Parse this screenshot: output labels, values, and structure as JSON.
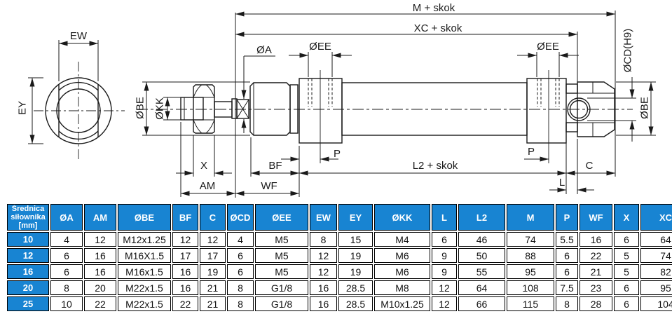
{
  "diagram": {
    "labels": {
      "m_skok": "M + skok",
      "xc_skok": "XC + skok",
      "l2_skok": "L2 + skok",
      "oa": "ØA",
      "oee_front": "ØEE",
      "oee_rear": "ØEE",
      "ocd": "ØCD(H9)",
      "obe_left": "ØBE",
      "obe_right": "ØBE",
      "okk": "ØKK",
      "ew": "EW",
      "ey": "EY",
      "x": "X",
      "am": "AM",
      "bf": "BF",
      "wf": "WF",
      "p_front": "P",
      "p_rear": "P",
      "l": "L",
      "c": "C"
    },
    "line_color": "#1a1a1a"
  },
  "table": {
    "header": {
      "col0": [
        "Średnica",
        "siłownika",
        "[mm]"
      ],
      "cols": [
        "ØA",
        "AM",
        "ØBE",
        "BF",
        "C",
        "ØCD",
        "ØEE",
        "EW",
        "EY",
        "ØKK",
        "L",
        "L2",
        "M",
        "P",
        "WF",
        "X",
        "XC"
      ]
    },
    "rows": [
      {
        "size": "10",
        "values": [
          "4",
          "12",
          "M12x1.25",
          "12",
          "12",
          "4",
          "M5",
          "8",
          "15",
          "M4",
          "6",
          "46",
          "74",
          "5.5",
          "16",
          "6",
          "64"
        ]
      },
      {
        "size": "12",
        "values": [
          "6",
          "16",
          "M16X1.5",
          "17",
          "17",
          "6",
          "M5",
          "12",
          "19",
          "M6",
          "9",
          "50",
          "88",
          "6",
          "22",
          "5",
          "74"
        ]
      },
      {
        "size": "16",
        "values": [
          "6",
          "16",
          "M16x1.5",
          "16",
          "19",
          "6",
          "M5",
          "12",
          "19",
          "M6",
          "9",
          "55",
          "95",
          "6",
          "21",
          "5",
          "82"
        ]
      },
      {
        "size": "20",
        "values": [
          "8",
          "20",
          "M22x1.5",
          "16",
          "21",
          "8",
          "G1/8",
          "16",
          "28.5",
          "M8",
          "12",
          "64",
          "108",
          "7.5",
          "23",
          "6",
          "95"
        ]
      },
      {
        "size": "25",
        "values": [
          "10",
          "22",
          "M22x1.5",
          "22",
          "21",
          "8",
          "G1/8",
          "16",
          "28.5",
          "M10x1.25",
          "12",
          "66",
          "115",
          "8",
          "28",
          "6",
          "104"
        ]
      }
    ],
    "colors": {
      "header_bg": "#1884d2",
      "header_text": "#ffffff",
      "cell_text": "#111111",
      "border": "#000000"
    }
  }
}
